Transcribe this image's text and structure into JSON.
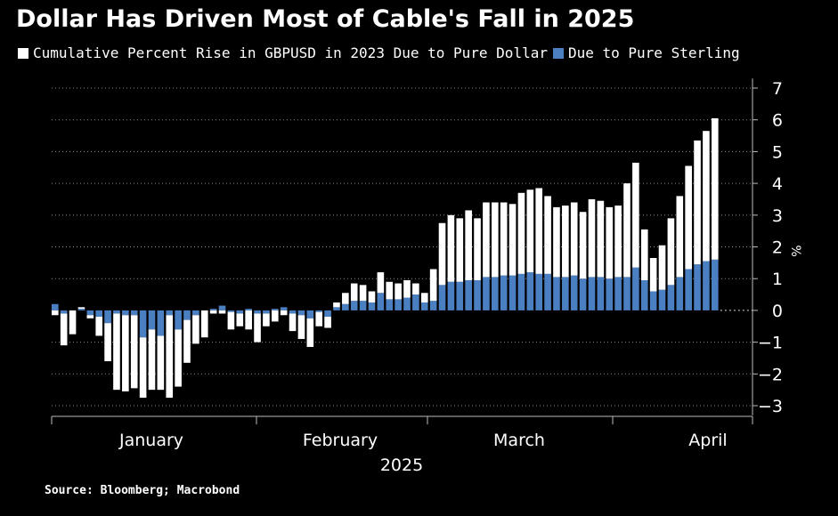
{
  "title": "Dollar Has Driven Most of Cable's Fall in 2025",
  "source": "Source: Bloomberg; Macrobond",
  "colors": {
    "background": "#000000",
    "dollar": "#ffffff",
    "sterling": "#4a7fc1",
    "grid": "#8a8a8a",
    "axis": "#bbbbbb"
  },
  "chart_data": {
    "type": "bar",
    "stacked": true,
    "ylabel": "%",
    "xlabel": "2025",
    "ylim": [
      -3.3,
      7.3
    ],
    "yticks": [
      7,
      6,
      5,
      4,
      3,
      2,
      1,
      0,
      -1,
      -2,
      -3
    ],
    "grid": true,
    "legend_position": "top-left",
    "month_labels": [
      "January",
      "February",
      "March",
      "April"
    ],
    "series": [
      {
        "name": "Cumulative Percent Rise in GBPUSD in 2023 Due to Pure Dollar",
        "color": "#ffffff",
        "values": [
          -0.15,
          -1.0,
          -0.75,
          0.05,
          -0.1,
          -0.6,
          -1.2,
          -2.4,
          -2.4,
          -2.3,
          -1.9,
          -1.9,
          -1.7,
          -2.6,
          -1.8,
          -1.35,
          -0.9,
          -0.85,
          -0.1,
          -0.1,
          -0.55,
          -0.4,
          -0.6,
          -0.9,
          -0.4,
          -0.35,
          -0.15,
          -0.55,
          -0.75,
          -0.9,
          -0.45,
          -0.35,
          0.15,
          0.35,
          0.55,
          0.5,
          0.35,
          0.65,
          0.55,
          0.5,
          0.55,
          0.35,
          0.3,
          1.0,
          1.95,
          2.1,
          2.0,
          2.2,
          1.95,
          2.35,
          2.35,
          2.3,
          2.25,
          2.55,
          2.6,
          2.7,
          2.45,
          2.2,
          2.25,
          2.3,
          2.1,
          2.45,
          2.4,
          2.25,
          2.25,
          2.95,
          3.3,
          1.6,
          1.05,
          1.4,
          2.1,
          2.55,
          3.25,
          3.9,
          4.1,
          4.45
        ]
      },
      {
        "name": "Due to Pure Sterling",
        "color": "#4a7fc1",
        "values": [
          0.2,
          -0.1,
          0.0,
          0.05,
          -0.15,
          -0.2,
          -0.4,
          -0.1,
          -0.15,
          -0.15,
          -0.85,
          -0.6,
          -0.8,
          -0.15,
          -0.6,
          -0.3,
          -0.15,
          0.0,
          0.05,
          0.15,
          -0.05,
          -0.1,
          0.05,
          -0.1,
          -0.1,
          0.05,
          0.1,
          -0.1,
          -0.15,
          -0.25,
          -0.05,
          -0.2,
          0.1,
          0.2,
          0.3,
          0.3,
          0.25,
          0.55,
          0.35,
          0.35,
          0.4,
          0.5,
          0.25,
          0.3,
          0.8,
          0.9,
          0.9,
          0.95,
          0.95,
          1.05,
          1.05,
          1.1,
          1.1,
          1.15,
          1.2,
          1.15,
          1.15,
          1.05,
          1.05,
          1.1,
          1.0,
          1.05,
          1.05,
          1.0,
          1.05,
          1.05,
          1.35,
          0.95,
          0.6,
          0.65,
          0.8,
          1.05,
          1.3,
          1.45,
          1.55,
          1.6
        ]
      }
    ]
  }
}
